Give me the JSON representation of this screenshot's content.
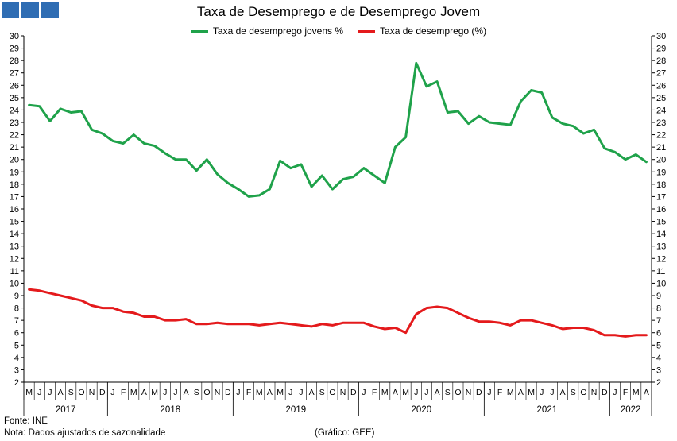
{
  "logo": {
    "icon": "brand-blocks-icon",
    "color": "#2f6db3"
  },
  "chart_data": {
    "type": "line",
    "title": "Taxa de Desemprego e de Desemprego Jovem",
    "ylim": [
      2,
      30
    ],
    "yticks": [
      2,
      3,
      4,
      5,
      6,
      7,
      8,
      9,
      10,
      11,
      12,
      13,
      14,
      15,
      16,
      17,
      18,
      19,
      20,
      21,
      22,
      23,
      24,
      25,
      26,
      27,
      28,
      29,
      30
    ],
    "grid": false,
    "legend_position": "top-center",
    "month_labels": [
      "M",
      "J",
      "J",
      "A",
      "S",
      "O",
      "N",
      "D",
      "J",
      "F",
      "M",
      "A",
      "M",
      "J",
      "J",
      "A",
      "S",
      "O",
      "N",
      "D",
      "J",
      "F",
      "M",
      "A",
      "M",
      "J",
      "J",
      "A",
      "S",
      "O",
      "N",
      "D",
      "J",
      "F",
      "M",
      "A",
      "M",
      "J",
      "J",
      "A",
      "S",
      "O",
      "N",
      "D",
      "J",
      "F",
      "M",
      "A",
      "M",
      "J",
      "J",
      "A",
      "S",
      "O",
      "N",
      "D",
      "J",
      "F",
      "M",
      "A"
    ],
    "years": [
      {
        "label": "2017",
        "start": 0,
        "end": 8
      },
      {
        "label": "2018",
        "start": 8,
        "end": 20
      },
      {
        "label": "2019",
        "start": 20,
        "end": 32
      },
      {
        "label": "2020",
        "start": 32,
        "end": 44
      },
      {
        "label": "2021",
        "start": 44,
        "end": 56
      },
      {
        "label": "2022",
        "start": 56,
        "end": 60
      }
    ],
    "series": [
      {
        "name": "Taxa de desemprego jovens %",
        "color": "#1fa24a",
        "values": [
          24.4,
          24.3,
          23.1,
          24.1,
          23.8,
          23.9,
          22.4,
          22.1,
          21.5,
          21.3,
          22.0,
          21.3,
          21.1,
          20.5,
          20.0,
          20.0,
          19.1,
          20.0,
          18.8,
          18.1,
          17.6,
          17.0,
          17.1,
          17.6,
          19.9,
          19.3,
          19.6,
          17.8,
          18.7,
          17.6,
          18.4,
          18.6,
          19.3,
          18.7,
          18.1,
          21.0,
          21.8,
          27.8,
          25.9,
          26.3,
          23.8,
          23.9,
          22.9,
          23.5,
          23.0,
          22.9,
          22.8,
          24.7,
          25.6,
          25.4,
          23.4,
          22.9,
          22.7,
          22.1,
          22.4,
          20.9,
          20.6,
          20.0,
          20.4,
          19.8
        ]
      },
      {
        "name": "Taxa de desemprego (%)",
        "color": "#e41a1c",
        "values": [
          9.5,
          9.4,
          9.2,
          9.0,
          8.8,
          8.6,
          8.2,
          8.0,
          8.0,
          7.7,
          7.6,
          7.3,
          7.3,
          7.0,
          7.0,
          7.1,
          6.7,
          6.7,
          6.8,
          6.7,
          6.7,
          6.7,
          6.6,
          6.7,
          6.8,
          6.7,
          6.6,
          6.5,
          6.7,
          6.6,
          6.8,
          6.8,
          6.8,
          6.5,
          6.3,
          6.4,
          6.0,
          7.5,
          8.0,
          8.1,
          8.0,
          7.6,
          7.2,
          6.9,
          6.9,
          6.8,
          6.6,
          7.0,
          7.0,
          6.8,
          6.6,
          6.3,
          6.4,
          6.4,
          6.2,
          5.8,
          5.8,
          5.7,
          5.8,
          5.8
        ]
      }
    ]
  },
  "footer": {
    "source": "Fonte: INE",
    "note": "Nota: Dados ajustados de sazonalidade",
    "credit": "(Gráfico: GEE)"
  }
}
